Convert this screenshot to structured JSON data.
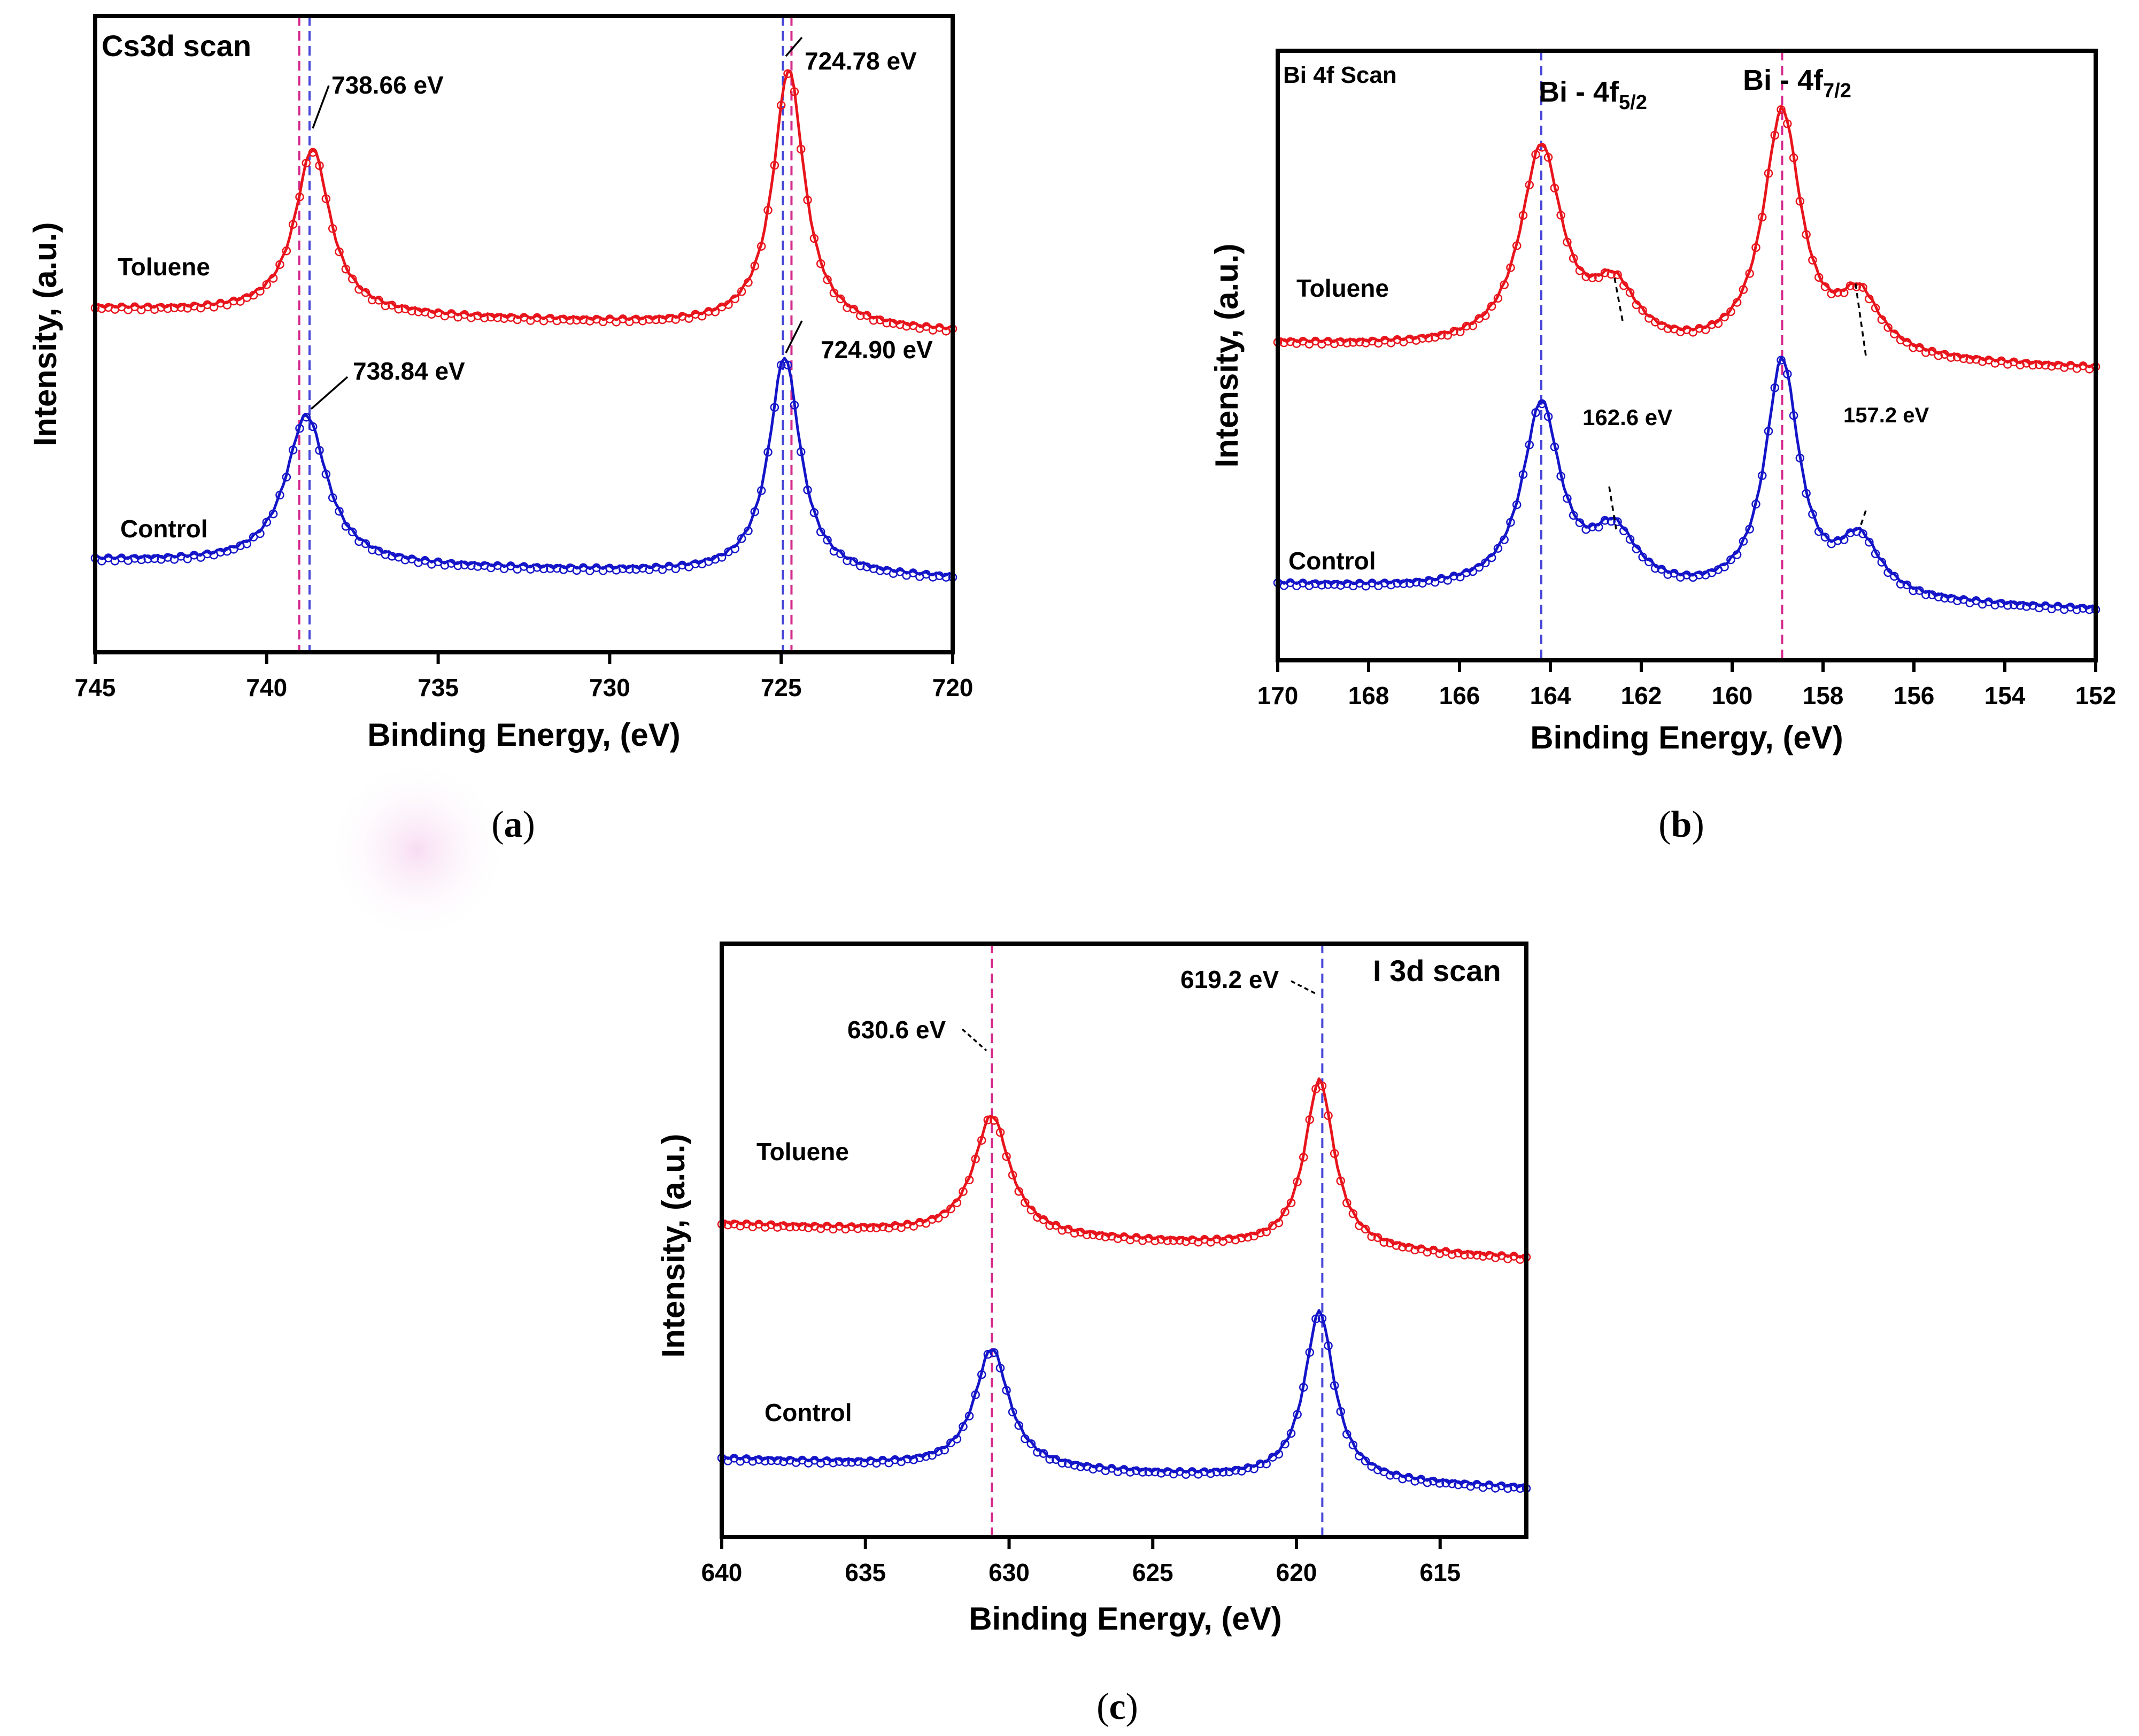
{
  "colors": {
    "toluene": "#e8141c",
    "control": "#1414c8",
    "guide_red": "#d42a8c",
    "guide_blue": "#4646d8"
  },
  "chart_data": [
    {
      "id": "a",
      "type": "line",
      "title": "Cs3d scan",
      "xlabel": "Binding Energy, (eV)",
      "ylabel": "Intensity, (a.u.)",
      "xlim": [
        745,
        720
      ],
      "ylim": [
        0,
        2.4
      ],
      "xticks": [
        745,
        740,
        735,
        730,
        725,
        720
      ],
      "xtick_labels": [
        "745",
        "740",
        "735",
        "730",
        "725",
        "720"
      ],
      "caption_letter": "a",
      "series": [
        {
          "name": "Toluene",
          "offset": 1.3,
          "baseline_start": 0.0,
          "baseline_end": -0.09,
          "peaks": [
            [
              738.66,
              0.62,
              0.62
            ],
            [
              724.78,
              0.97,
              0.55
            ]
          ]
        },
        {
          "name": "Control",
          "offset": 0.35,
          "baseline_start": 0.0,
          "baseline_end": -0.07,
          "peaks": [
            [
              738.84,
              0.56,
              0.72
            ],
            [
              724.9,
              0.82,
              0.55
            ]
          ]
        }
      ],
      "guides": [
        {
          "x": 739.05,
          "color": "guide_red"
        },
        {
          "x": 738.75,
          "color": "guide_blue"
        },
        {
          "x": 724.95,
          "color": "guide_blue"
        },
        {
          "x": 724.7,
          "color": "guide_red"
        }
      ],
      "annotations": [
        {
          "text": "738.66 eV",
          "peak_x": 738.66,
          "series": "Toluene"
        },
        {
          "text": "724.78 eV",
          "peak_x": 724.78,
          "series": "Toluene"
        },
        {
          "text": "738.84 eV",
          "peak_x": 738.84,
          "series": "Control"
        },
        {
          "text": "724.90 eV",
          "peak_x": 724.9,
          "series": "Control"
        }
      ]
    },
    {
      "id": "b",
      "type": "line",
      "title": "Bi 4f Scan",
      "xlabel": "Binding Energy, (eV)",
      "ylabel": "Intensity, (a.u.)",
      "xlim": [
        170,
        152
      ],
      "ylim": [
        0,
        2.4
      ],
      "xticks": [
        170,
        168,
        166,
        164,
        162,
        160,
        158,
        156,
        154,
        152
      ],
      "xtick_labels": [
        "170",
        "168",
        "166",
        "164",
        "162",
        "160",
        "158",
        "156",
        "154",
        "152"
      ],
      "caption_letter": "b",
      "peak_labels": [
        {
          "base": "Bi - 4f",
          "sub": "5/2",
          "x": 164.2
        },
        {
          "base": "Bi - 4f",
          "sub": "7/2",
          "x": 158.9
        }
      ],
      "series": [
        {
          "name": "Toluene",
          "offset": 1.25,
          "baseline_start": 0.0,
          "baseline_end": -0.1,
          "peaks": [
            [
              164.2,
              0.78,
              0.55
            ],
            [
              162.6,
              0.22,
              0.6
            ],
            [
              158.9,
              0.95,
              0.5
            ],
            [
              157.2,
              0.22,
              0.55
            ]
          ]
        },
        {
          "name": "Control",
          "offset": 0.3,
          "baseline_start": 0.0,
          "baseline_end": -0.1,
          "peaks": [
            [
              164.2,
              0.72,
              0.5
            ],
            [
              162.6,
              0.22,
              0.6
            ],
            [
              158.9,
              0.92,
              0.45
            ],
            [
              157.2,
              0.22,
              0.55
            ]
          ]
        }
      ],
      "guides": [
        {
          "x": 164.2,
          "color": "guide_blue"
        },
        {
          "x": 158.9,
          "color": "guide_red"
        }
      ],
      "annotations": [
        {
          "text": "162.6 eV",
          "peak_x": 162.6,
          "series": "Control"
        },
        {
          "text": "157.2 eV",
          "peak_x": 157.2,
          "series": "Control"
        }
      ]
    },
    {
      "id": "c",
      "type": "line",
      "title": "I 3d scan",
      "xlabel": "Binding Energy, (eV)",
      "ylabel": "Intensity, (a.u.)",
      "xlim": [
        640,
        612
      ],
      "ylim": [
        0,
        2.4
      ],
      "xticks": [
        640,
        635,
        630,
        625,
        620,
        615
      ],
      "xtick_labels": [
        "640",
        "635",
        "630",
        "625",
        "620",
        "615"
      ],
      "caption_letter": "c",
      "series": [
        {
          "name": "Toluene",
          "offset": 1.27,
          "baseline_start": 0.0,
          "baseline_end": -0.14,
          "peaks": [
            [
              630.6,
              0.48,
              0.75
            ],
            [
              619.2,
              0.68,
              0.62
            ]
          ]
        },
        {
          "name": "Control",
          "offset": 0.32,
          "baseline_start": 0.0,
          "baseline_end": -0.12,
          "peaks": [
            [
              630.6,
              0.48,
              0.72
            ],
            [
              619.2,
              0.68,
              0.62
            ]
          ]
        }
      ],
      "guides": [
        {
          "x": 630.6,
          "color": "guide_red"
        },
        {
          "x": 619.1,
          "color": "guide_blue"
        }
      ],
      "annotations": [
        {
          "text": "630.6 eV",
          "peak_x": 630.6,
          "series": "Toluene"
        },
        {
          "text": "619.2 eV",
          "peak_x": 619.2,
          "series": "Toluene"
        }
      ]
    }
  ]
}
